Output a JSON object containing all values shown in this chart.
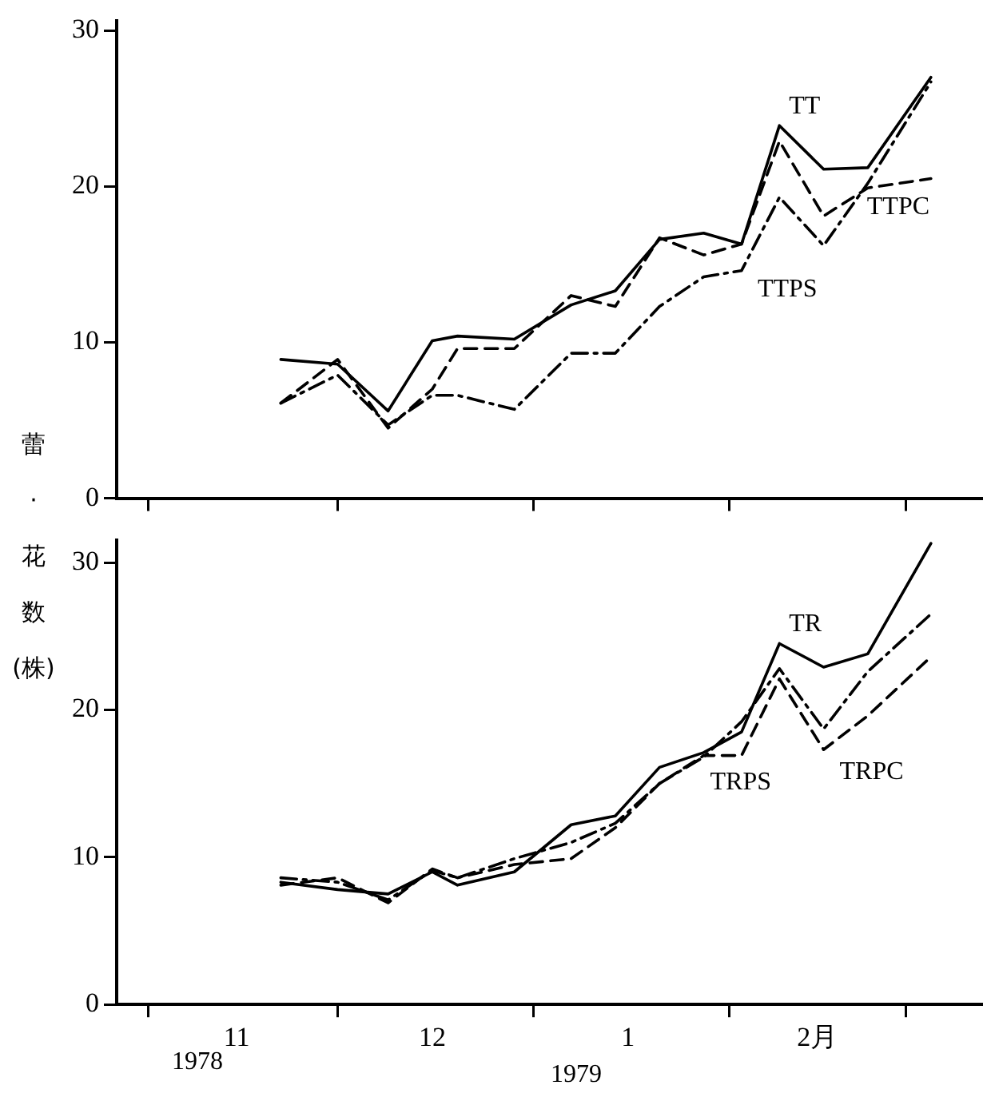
{
  "chart_data": [
    {
      "type": "line",
      "ylabel": "蕾·花数(株)",
      "x": [
        "1978-11-22",
        "1978-12-01",
        "1978-12-09",
        "1978-12-16",
        "1978-12-20",
        "1978-12-29",
        "1979-01-07",
        "1979-01-14",
        "1979-01-21",
        "1979-01-28",
        "1979-02-03",
        "1979-02-09",
        "1979-02-16",
        "1979-02-23",
        "1979-03-05"
      ],
      "series": [
        {
          "name": "TT",
          "color": "#000000",
          "line_style": "solid",
          "values": [
            8.9,
            8.6,
            5.6,
            10.1,
            10.4,
            10.2,
            12.4,
            13.3,
            16.6,
            17.0,
            16.3,
            23.9,
            21.1,
            21.2,
            27.0
          ]
        },
        {
          "name": "TTPC",
          "color": "#000000",
          "line_style": "dashed",
          "values": [
            6.1,
            8.9,
            4.5,
            7.0,
            9.6,
            9.6,
            13.0,
            12.3,
            16.7,
            15.6,
            16.3,
            22.9,
            18.1,
            19.9,
            20.5
          ]
        },
        {
          "name": "TTPS",
          "color": "#000000",
          "line_style": "dashdot",
          "values": [
            6.1,
            7.9,
            4.7,
            6.6,
            6.6,
            5.7,
            9.3,
            9.3,
            12.3,
            14.2,
            14.6,
            19.3,
            16.2,
            20.2,
            26.7
          ]
        }
      ],
      "xlim": [
        "1978-10-27",
        "1979-03-13"
      ],
      "xticks": [
        {
          "value": "1978-11-01",
          "label": null
        },
        {
          "value": "1978-12-01",
          "label": null
        },
        {
          "value": "1979-01-01",
          "label": null
        },
        {
          "value": "1979-02-01",
          "label": null
        },
        {
          "value": "1979-03-01",
          "label": null
        }
      ],
      "ylim": [
        0,
        30.6
      ],
      "yticks": [
        0,
        10,
        20,
        30
      ],
      "tick_labels": "y",
      "grid": false,
      "legend": false,
      "marker": "none"
    },
    {
      "type": "line",
      "x": [
        "1978-11-22",
        "1978-12-01",
        "1978-12-09",
        "1978-12-16",
        "1978-12-20",
        "1978-12-29",
        "1979-01-07",
        "1979-01-14",
        "1979-01-21",
        "1979-01-28",
        "1979-02-03",
        "1979-02-09",
        "1979-02-16",
        "1979-02-23",
        "1979-03-05"
      ],
      "series": [
        {
          "name": "TR",
          "color": "#000000",
          "line_style": "solid",
          "values": [
            8.3,
            7.8,
            7.5,
            9.0,
            8.1,
            9.0,
            12.2,
            12.8,
            16.1,
            17.1,
            18.5,
            24.5,
            22.9,
            23.8,
            31.3
          ]
        },
        {
          "name": "TRPC",
          "color": "#000000",
          "line_style": "dashed",
          "values": [
            8.1,
            8.6,
            6.9,
            9.2,
            8.6,
            9.5,
            9.9,
            12.0,
            15.0,
            16.9,
            16.9,
            22.1,
            17.3,
            19.6,
            23.6
          ]
        },
        {
          "name": "TRPS",
          "color": "#000000",
          "line_style": "dashdot",
          "values": [
            8.6,
            8.3,
            7.1,
            9.1,
            8.6,
            9.9,
            11.0,
            12.3,
            15.0,
            16.8,
            19.2,
            22.8,
            18.7,
            22.6,
            26.5
          ]
        }
      ],
      "xlim": [
        "1978-10-27",
        "1979-03-13"
      ],
      "xticks": [
        {
          "value": "1978-11-01",
          "label": null
        },
        {
          "value": "1978-11-15",
          "label": "11"
        },
        {
          "value": "1978-12-01",
          "label": null
        },
        {
          "value": "1978-12-16",
          "label": "12"
        },
        {
          "value": "1979-01-01",
          "label": null
        },
        {
          "value": "1979-01-16",
          "label": "1"
        },
        {
          "value": "1979-02-01",
          "label": null
        },
        {
          "value": "1979-02-15",
          "label": "2月"
        },
        {
          "value": "1979-03-01",
          "label": null
        }
      ],
      "annotations": [
        "1978",
        "1979"
      ],
      "ylim": [
        0,
        31.5
      ],
      "yticks": [
        0,
        10,
        20,
        30
      ],
      "grid": false,
      "legend": false,
      "marker": "none"
    }
  ]
}
